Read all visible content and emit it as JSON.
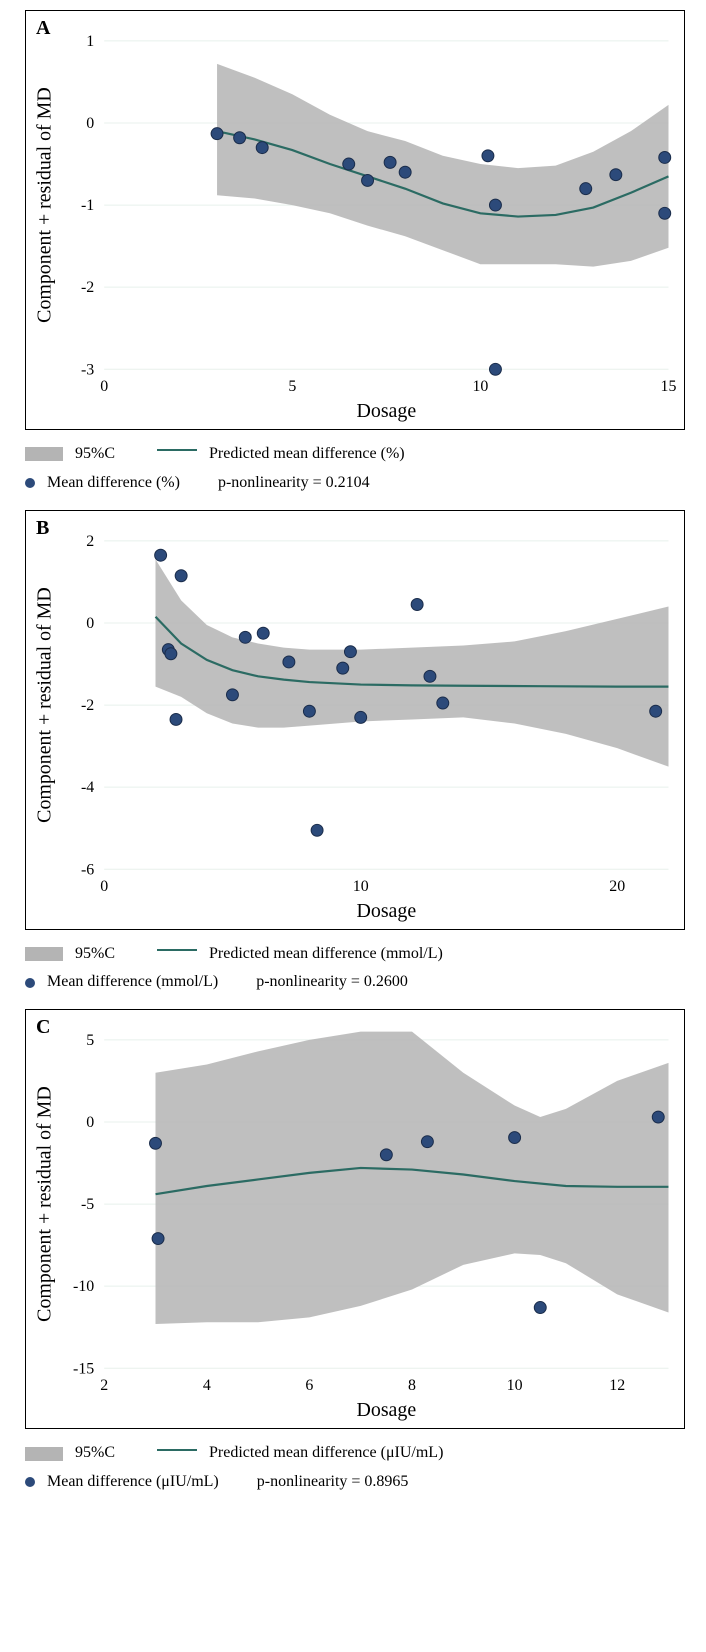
{
  "panels": [
    {
      "label": "A",
      "xlabel": "Dosage",
      "ylabel": "Component + residual of MD",
      "xlim": [
        0,
        15
      ],
      "ylim": [
        -3,
        1
      ],
      "xticks": [
        0,
        5,
        10,
        15
      ],
      "yticks": [
        -3,
        -2,
        -1,
        0,
        1
      ],
      "grid_color": "#e8f0ec",
      "ci_color": "#b4b4b4",
      "line_color": "#2b6b63",
      "point_color": "#2c4a7a",
      "point_border": "#1a2c4a",
      "line_width": 2.2,
      "point_radius": 6,
      "ci_path": [
        [
          3,
          0.72
        ],
        [
          4,
          0.55
        ],
        [
          5,
          0.35
        ],
        [
          6,
          0.1
        ],
        [
          7,
          -0.1
        ],
        [
          8,
          -0.22
        ],
        [
          9,
          -0.4
        ],
        [
          10,
          -0.5
        ],
        [
          11,
          -0.55
        ],
        [
          12,
          -0.52
        ],
        [
          13,
          -0.35
        ],
        [
          14,
          -0.1
        ],
        [
          15,
          0.22
        ],
        [
          15,
          -1.52
        ],
        [
          14,
          -1.68
        ],
        [
          13,
          -1.75
        ],
        [
          12,
          -1.72
        ],
        [
          11,
          -1.72
        ],
        [
          10,
          -1.72
        ],
        [
          9,
          -1.55
        ],
        [
          8,
          -1.38
        ],
        [
          7,
          -1.25
        ],
        [
          6,
          -1.1
        ],
        [
          5,
          -1.0
        ],
        [
          4,
          -0.92
        ],
        [
          3,
          -0.88
        ]
      ],
      "line_pts": [
        [
          3,
          -0.1
        ],
        [
          4,
          -0.2
        ],
        [
          5,
          -0.33
        ],
        [
          6,
          -0.5
        ],
        [
          7,
          -0.65
        ],
        [
          8,
          -0.8
        ],
        [
          9,
          -0.98
        ],
        [
          10,
          -1.1
        ],
        [
          11,
          -1.14
        ],
        [
          12,
          -1.12
        ],
        [
          13,
          -1.03
        ],
        [
          14,
          -0.85
        ],
        [
          15,
          -0.65
        ]
      ],
      "points": [
        [
          3,
          -0.13
        ],
        [
          3.6,
          -0.18
        ],
        [
          4.2,
          -0.3
        ],
        [
          6.5,
          -0.5
        ],
        [
          7,
          -0.7
        ],
        [
          7.6,
          -0.48
        ],
        [
          8,
          -0.6
        ],
        [
          10.2,
          -0.4
        ],
        [
          10.4,
          -1.0
        ],
        [
          12.8,
          -0.8
        ],
        [
          13.6,
          -0.63
        ],
        [
          14.9,
          -0.42
        ],
        [
          14.9,
          -1.1
        ],
        [
          10.4,
          -3.0
        ]
      ],
      "legend": {
        "ci": "95%C",
        "line": "Predicted mean difference (%)",
        "dot": "Mean difference (%)",
        "pstat": "p-nonlinearity = 0.2104"
      }
    },
    {
      "label": "B",
      "xlabel": "Dosage",
      "ylabel": "Component + residual of MD",
      "xlim": [
        0,
        22
      ],
      "ylim": [
        -6,
        2
      ],
      "xticks": [
        0,
        10,
        20
      ],
      "yticks": [
        -6,
        -4,
        -2,
        0,
        2
      ],
      "grid_color": "#e8f0ec",
      "ci_color": "#b4b4b4",
      "line_color": "#2b6b63",
      "point_color": "#2c4a7a",
      "point_border": "#1a2c4a",
      "line_width": 2.2,
      "point_radius": 6,
      "ci_path": [
        [
          2,
          1.55
        ],
        [
          3,
          0.55
        ],
        [
          4,
          -0.05
        ],
        [
          5,
          -0.35
        ],
        [
          6,
          -0.5
        ],
        [
          7,
          -0.6
        ],
        [
          8,
          -0.65
        ],
        [
          10,
          -0.65
        ],
        [
          12,
          -0.6
        ],
        [
          14,
          -0.55
        ],
        [
          16,
          -0.45
        ],
        [
          18,
          -0.2
        ],
        [
          20,
          0.1
        ],
        [
          22,
          0.4
        ],
        [
          22,
          -3.5
        ],
        [
          20,
          -3.05
        ],
        [
          18,
          -2.7
        ],
        [
          16,
          -2.45
        ],
        [
          14,
          -2.3
        ],
        [
          12,
          -2.35
        ],
        [
          10,
          -2.4
        ],
        [
          8,
          -2.5
        ],
        [
          7,
          -2.55
        ],
        [
          6,
          -2.55
        ],
        [
          5,
          -2.45
        ],
        [
          4,
          -2.2
        ],
        [
          3,
          -1.8
        ],
        [
          2,
          -1.55
        ]
      ],
      "line_pts": [
        [
          2,
          0.15
        ],
        [
          3,
          -0.5
        ],
        [
          4,
          -0.9
        ],
        [
          5,
          -1.15
        ],
        [
          6,
          -1.3
        ],
        [
          7,
          -1.38
        ],
        [
          8,
          -1.44
        ],
        [
          10,
          -1.5
        ],
        [
          12,
          -1.52
        ],
        [
          14,
          -1.53
        ],
        [
          17,
          -1.54
        ],
        [
          20,
          -1.55
        ],
        [
          22,
          -1.55
        ]
      ],
      "points": [
        [
          2.2,
          1.65
        ],
        [
          3.0,
          1.15
        ],
        [
          2.5,
          -0.65
        ],
        [
          2.6,
          -0.75
        ],
        [
          2.8,
          -2.35
        ],
        [
          5.0,
          -1.75
        ],
        [
          5.5,
          -0.35
        ],
        [
          6.2,
          -0.25
        ],
        [
          7.2,
          -0.95
        ],
        [
          8.0,
          -2.15
        ],
        [
          8.3,
          -5.05
        ],
        [
          9.3,
          -1.1
        ],
        [
          9.6,
          -0.7
        ],
        [
          10.0,
          -2.3
        ],
        [
          12.2,
          0.45
        ],
        [
          12.7,
          -1.3
        ],
        [
          13.2,
          -1.95
        ],
        [
          21.5,
          -2.15
        ]
      ],
      "legend": {
        "ci": "95%C",
        "line": "Predicted mean difference (mmol/L)",
        "dot": "Mean difference (mmol/L)",
        "pstat": "p-nonlinearity = 0.2600"
      }
    },
    {
      "label": "C",
      "xlabel": "Dosage",
      "ylabel": "Component + residual of MD",
      "xlim": [
        2,
        13
      ],
      "ylim": [
        -15,
        5
      ],
      "xticks": [
        2,
        4,
        6,
        8,
        10,
        12
      ],
      "yticks": [
        -15,
        -10,
        -5,
        0,
        5
      ],
      "grid_color": "#e8f0ec",
      "ci_color": "#b4b4b4",
      "line_color": "#2b6b63",
      "point_color": "#2c4a7a",
      "point_border": "#1a2c4a",
      "line_width": 2.2,
      "point_radius": 6,
      "ci_path": [
        [
          3,
          3.0
        ],
        [
          4,
          3.5
        ],
        [
          5,
          4.3
        ],
        [
          6,
          5.0
        ],
        [
          7,
          5.5
        ],
        [
          8,
          5.5
        ],
        [
          9,
          3.0
        ],
        [
          10,
          1.0
        ],
        [
          10.5,
          0.3
        ],
        [
          11,
          0.8
        ],
        [
          12,
          2.5
        ],
        [
          13,
          3.6
        ],
        [
          13,
          -11.6
        ],
        [
          12,
          -10.5
        ],
        [
          11,
          -8.6
        ],
        [
          10.5,
          -8.1
        ],
        [
          10,
          -8.0
        ],
        [
          9,
          -8.7
        ],
        [
          8,
          -10.2
        ],
        [
          7,
          -11.2
        ],
        [
          6,
          -11.9
        ],
        [
          5,
          -12.2
        ],
        [
          4,
          -12.2
        ],
        [
          3,
          -12.3
        ]
      ],
      "line_pts": [
        [
          3,
          -4.4
        ],
        [
          4,
          -3.9
        ],
        [
          5,
          -3.5
        ],
        [
          6,
          -3.1
        ],
        [
          7,
          -2.8
        ],
        [
          8,
          -2.9
        ],
        [
          9,
          -3.2
        ],
        [
          10,
          -3.6
        ],
        [
          11,
          -3.9
        ],
        [
          12,
          -3.95
        ],
        [
          13,
          -3.95
        ]
      ],
      "points": [
        [
          3,
          -1.3
        ],
        [
          3.05,
          -7.1
        ],
        [
          7.5,
          -2.0
        ],
        [
          8.3,
          -1.2
        ],
        [
          10.0,
          -0.95
        ],
        [
          10.5,
          -11.3
        ],
        [
          12.8,
          0.3
        ]
      ],
      "legend": {
        "ci": "95%C",
        "line": "Predicted mean difference (μIU/mL)",
        "dot": "Mean difference (μIU/mL)",
        "pstat": "p-nonlinearity = 0.8965"
      }
    }
  ],
  "typography": {
    "axis_label_fontsize": 20,
    "tick_fontsize": 16,
    "panel_label_fontsize": 20,
    "legend_fontsize": 16
  }
}
